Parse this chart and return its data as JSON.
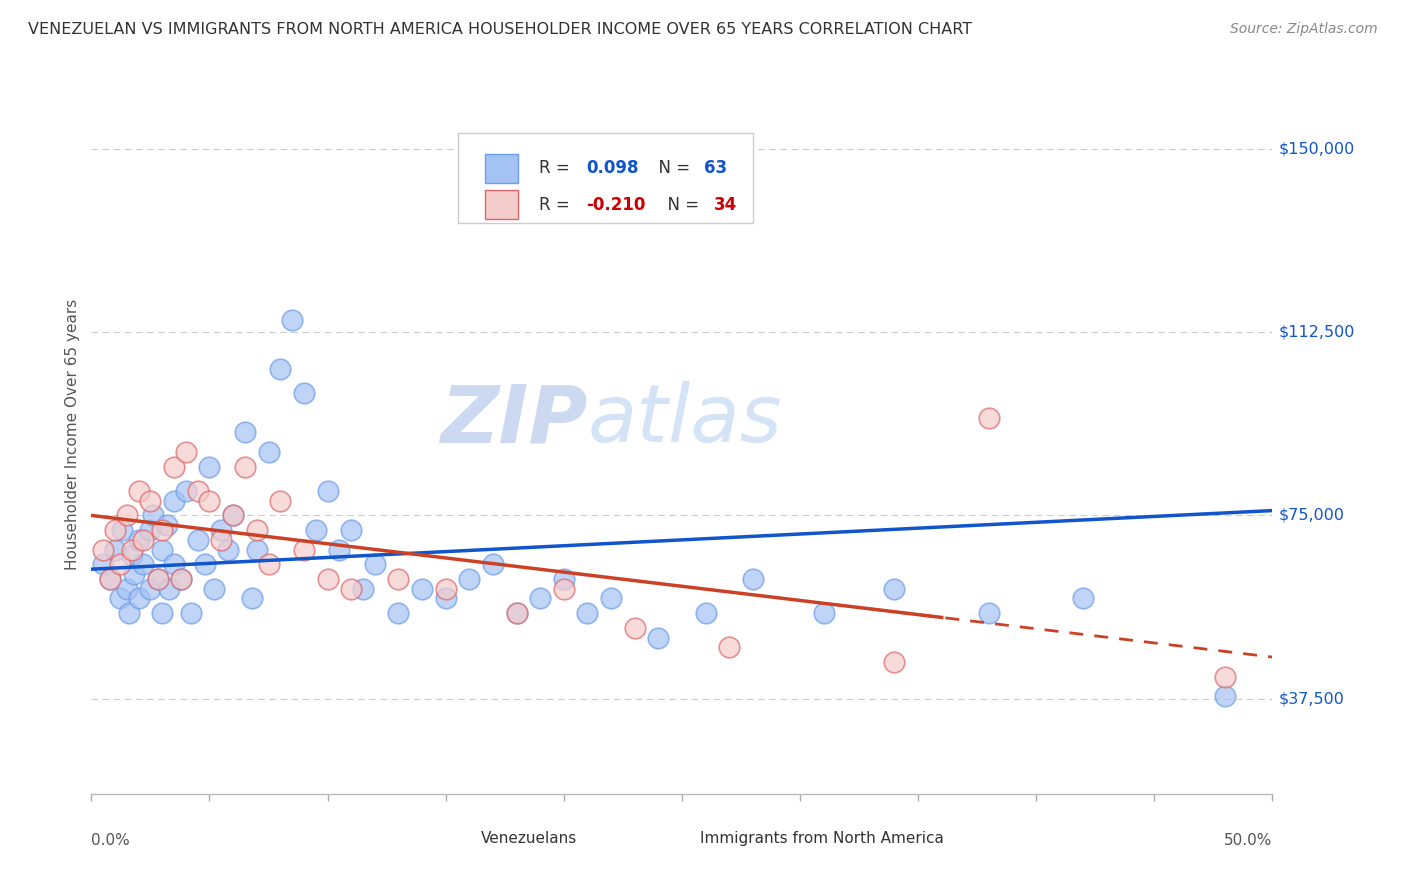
{
  "title": "VENEZUELAN VS IMMIGRANTS FROM NORTH AMERICA HOUSEHOLDER INCOME OVER 65 YEARS CORRELATION CHART",
  "source": "Source: ZipAtlas.com",
  "ylabel": "Householder Income Over 65 years",
  "xlim": [
    0.0,
    0.5
  ],
  "ylim": [
    18000,
    165000
  ],
  "yticks": [
    37500,
    75000,
    112500,
    150000
  ],
  "ytick_labels": [
    "$37,500",
    "$75,000",
    "$112,500",
    "$150,000"
  ],
  "color_blue": "#a4c2f4",
  "color_pink": "#f4cccc",
  "color_blue_border": "#6d9eeb",
  "color_pink_border": "#e06666",
  "color_trend_blue": "#1155cc",
  "color_trend_pink": "#cc4125",
  "color_legend_num_blue": "#1155cc",
  "color_legend_num_pink": "#cc0000",
  "watermark_zip": "ZIP",
  "watermark_atlas": "atlas",
  "watermark_color": "#d0dff7",
  "xtick_labels_left": "0.0%",
  "xtick_labels_right": "50.0%",
  "venezuelan_x": [
    0.005,
    0.008,
    0.01,
    0.012,
    0.013,
    0.015,
    0.016,
    0.017,
    0.018,
    0.02,
    0.02,
    0.022,
    0.025,
    0.025,
    0.026,
    0.028,
    0.03,
    0.03,
    0.032,
    0.033,
    0.035,
    0.035,
    0.038,
    0.04,
    0.042,
    0.045,
    0.048,
    0.05,
    0.052,
    0.055,
    0.058,
    0.06,
    0.065,
    0.068,
    0.07,
    0.075,
    0.08,
    0.085,
    0.09,
    0.095,
    0.1,
    0.105,
    0.11,
    0.115,
    0.12,
    0.13,
    0.14,
    0.15,
    0.16,
    0.17,
    0.18,
    0.19,
    0.2,
    0.21,
    0.22,
    0.24,
    0.26,
    0.28,
    0.31,
    0.34,
    0.38,
    0.42,
    0.48
  ],
  "venezuelan_y": [
    65000,
    62000,
    68000,
    58000,
    72000,
    60000,
    55000,
    67000,
    63000,
    70000,
    58000,
    65000,
    72000,
    60000,
    75000,
    62000,
    68000,
    55000,
    73000,
    60000,
    78000,
    65000,
    62000,
    80000,
    55000,
    70000,
    65000,
    85000,
    60000,
    72000,
    68000,
    75000,
    92000,
    58000,
    68000,
    88000,
    105000,
    115000,
    100000,
    72000,
    80000,
    68000,
    72000,
    60000,
    65000,
    55000,
    60000,
    58000,
    62000,
    65000,
    55000,
    58000,
    62000,
    55000,
    58000,
    50000,
    55000,
    62000,
    55000,
    60000,
    55000,
    58000,
    38000
  ],
  "northamerica_x": [
    0.005,
    0.008,
    0.01,
    0.012,
    0.015,
    0.017,
    0.02,
    0.022,
    0.025,
    0.028,
    0.03,
    0.035,
    0.038,
    0.04,
    0.045,
    0.05,
    0.055,
    0.06,
    0.065,
    0.07,
    0.075,
    0.08,
    0.09,
    0.1,
    0.11,
    0.13,
    0.15,
    0.18,
    0.2,
    0.23,
    0.27,
    0.34,
    0.38,
    0.48
  ],
  "northamerica_y": [
    68000,
    62000,
    72000,
    65000,
    75000,
    68000,
    80000,
    70000,
    78000,
    62000,
    72000,
    85000,
    62000,
    88000,
    80000,
    78000,
    70000,
    75000,
    85000,
    72000,
    65000,
    78000,
    68000,
    62000,
    60000,
    62000,
    60000,
    55000,
    60000,
    52000,
    48000,
    45000,
    95000,
    42000
  ],
  "trend_blue_x0": 0.0,
  "trend_blue_x1": 0.5,
  "trend_blue_y0": 64000,
  "trend_blue_y1": 76000,
  "trend_pink_x0": 0.0,
  "trend_pink_x1": 0.5,
  "trend_pink_y0": 75000,
  "trend_pink_y1": 46000,
  "trend_pink_solid_end": 0.36,
  "trend_pink_dash_start": 0.33
}
